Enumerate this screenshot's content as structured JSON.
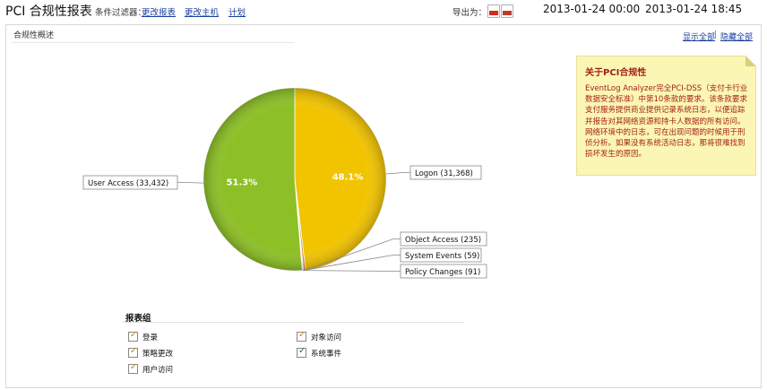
{
  "header": {
    "title": "PCI 合规性报表",
    "separator": "|",
    "filter_label": "条件过滤器：",
    "links": [
      "更改报表",
      "更改主机",
      "计划"
    ],
    "export_label": "导出为：",
    "export_icons": [
      "pdf-icon",
      "csv-icon"
    ],
    "date_from": "2013-01-24 00:00",
    "date_to": "2013-01-24 18:45"
  },
  "panel": {
    "title": "合规性概述",
    "show_all": "显示全部",
    "pipe": "|",
    "hide_all": "隐藏全部"
  },
  "note": {
    "title": "关于PCI合规性",
    "body": "EventLog Analyzer完全PCI-DSS（支付卡行业数据安全标准）中第10条款的要求。该条款要求支付服务提供商业提供记录系统日志，以便追踪并报告对其网络资源和持卡人数据的所有访问。网络环境中的日志，可在出现问题的时候用于刑侦分析。如果没有系统活动日志，那将很难找到损坏发生的原因。"
  },
  "chart_data": {
    "type": "pie",
    "title": "",
    "slices": [
      {
        "label": "Logon",
        "value": 31368,
        "percent_label": "48.1%",
        "color": "#f2c400"
      },
      {
        "label": "Object Access",
        "value": 235,
        "percent_label": "",
        "color": "#e07a2c"
      },
      {
        "label": "System Events",
        "value": 59,
        "percent_label": "",
        "color": "#5aa0d0"
      },
      {
        "label": "Policy Changes",
        "value": 91,
        "percent_label": "",
        "color": "#c77acb"
      },
      {
        "label": "User Access",
        "value": 33432,
        "percent_label": "51.3%",
        "color": "#8dc026"
      }
    ],
    "callouts": [
      "Logon (31,368)",
      "Object Access (235)",
      "System Events (59)",
      "Policy Changes (91)",
      "User Access (33,432)"
    ]
  },
  "legend": {
    "title": "报表组",
    "items": [
      {
        "label": "登录",
        "checked": true,
        "check_color": "#d08a00"
      },
      {
        "label": "对象访问",
        "checked": true,
        "check_color": "#d08a00"
      },
      {
        "label": "策略更改",
        "checked": true,
        "check_color": "#d08a00"
      },
      {
        "label": "系统事件",
        "checked": true,
        "check_color": "#1f7a4a"
      },
      {
        "label": "用户访问",
        "checked": true,
        "check_color": "#d08a00"
      }
    ]
  }
}
